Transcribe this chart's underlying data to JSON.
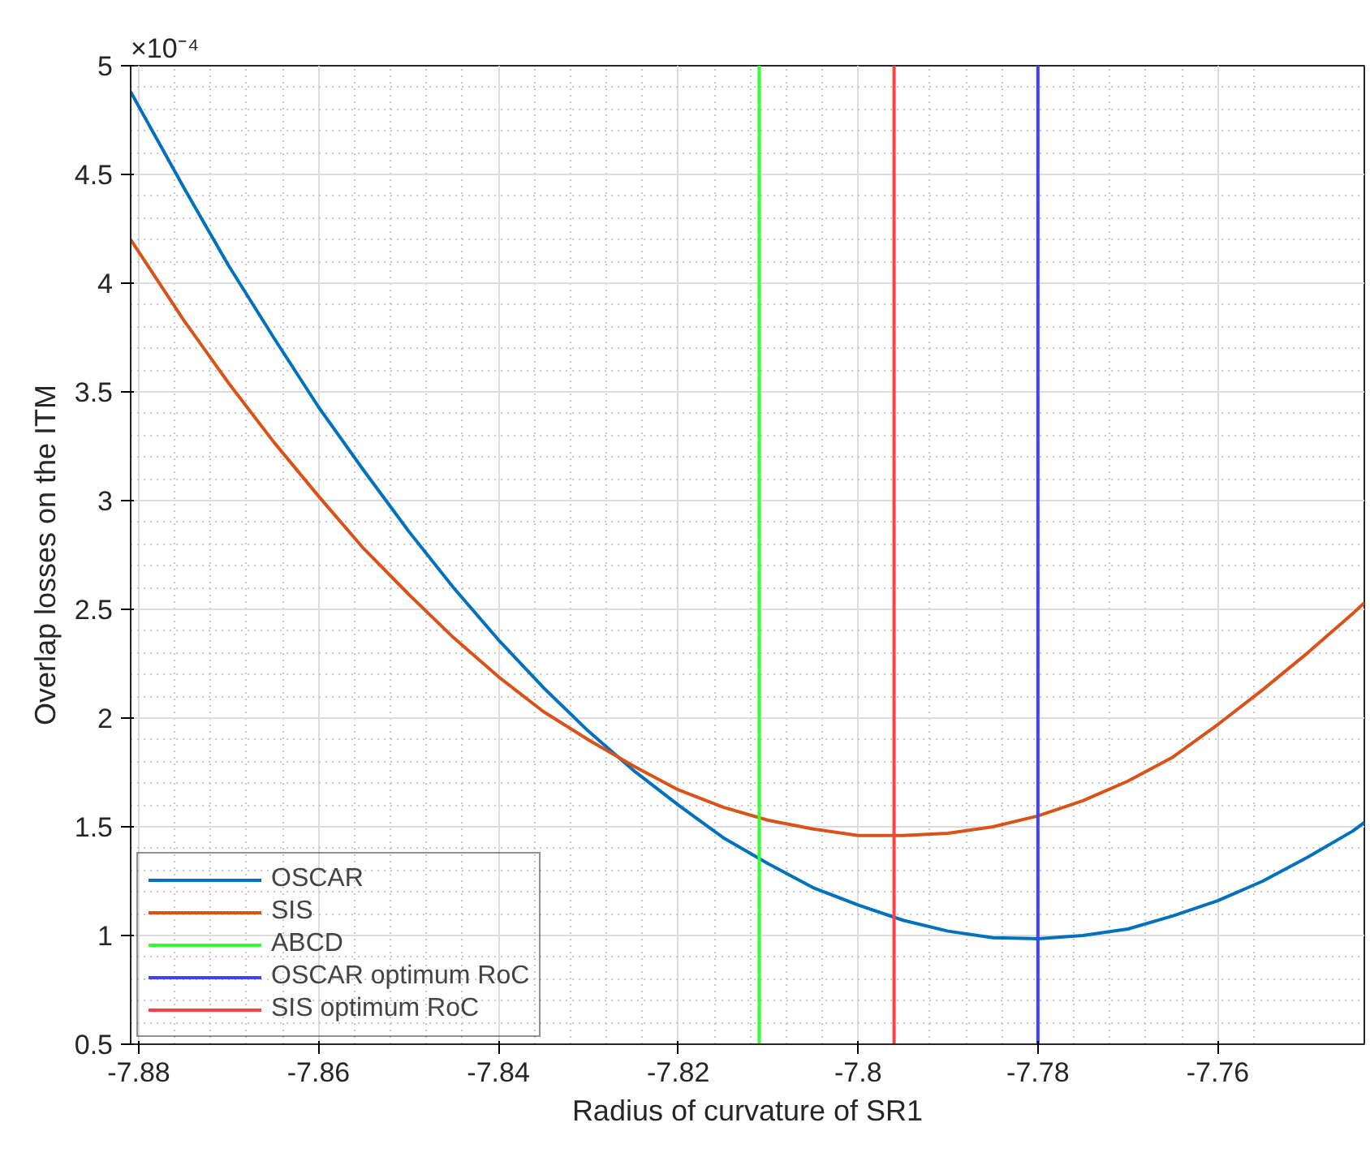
{
  "chart_data": {
    "type": "line",
    "xlabel": "Radius of curvature of SR1",
    "ylabel": "Overlap losses on the ITM",
    "annotations": [
      "×10⁻⁴"
    ],
    "x": [
      -7.8809,
      -7.875,
      -7.87,
      -7.865,
      -7.86,
      -7.855,
      -7.85,
      -7.845,
      -7.84,
      -7.835,
      -7.83,
      -7.825,
      -7.82,
      -7.815,
      -7.81,
      -7.805,
      -7.8,
      -7.795,
      -7.79,
      -7.785,
      -7.78,
      -7.775,
      -7.77,
      -7.765,
      -7.76,
      -7.755,
      -7.75,
      -7.745,
      -7.7437
    ],
    "series": [
      {
        "name": "OSCAR",
        "color": "#0072bd",
        "values": [
          4.88,
          4.44,
          4.08,
          3.75,
          3.43,
          3.14,
          2.86,
          2.6,
          2.36,
          2.14,
          1.94,
          1.76,
          1.6,
          1.45,
          1.33,
          1.22,
          1.14,
          1.07,
          1.02,
          0.99,
          0.985,
          1.0,
          1.03,
          1.09,
          1.16,
          1.25,
          1.36,
          1.48,
          1.52
        ]
      },
      {
        "name": "SIS",
        "color": "#d95319",
        "values": [
          4.2,
          3.83,
          3.54,
          3.27,
          3.02,
          2.78,
          2.57,
          2.37,
          2.19,
          2.03,
          1.9,
          1.78,
          1.67,
          1.59,
          1.53,
          1.49,
          1.46,
          1.46,
          1.47,
          1.5,
          1.55,
          1.62,
          1.71,
          1.82,
          1.97,
          2.13,
          2.3,
          2.48,
          2.53
        ]
      },
      {
        "name": "ABCD",
        "color": "#33ff33",
        "x": [
          -7.811,
          -7.811
        ],
        "values": [
          0.5,
          5
        ]
      },
      {
        "name": "OSCAR optimum RoC",
        "color": "#4040ff",
        "x": [
          -7.78,
          -7.78
        ],
        "values": [
          0.5,
          5
        ]
      },
      {
        "name": "SIS optimum RoC",
        "color": "#ff4040",
        "x": [
          -7.796,
          -7.796
        ],
        "values": [
          0.5,
          5
        ]
      }
    ],
    "xlim": [
      -7.8809,
      -7.7437
    ],
    "ylim": [
      0.5,
      5
    ],
    "xticks": [
      -7.88,
      -7.86,
      -7.84,
      -7.82,
      -7.8,
      -7.78,
      -7.76
    ],
    "yticks": [
      0.5,
      1,
      1.5,
      2,
      2.5,
      3,
      3.5,
      4,
      4.5,
      5
    ],
    "grid": true,
    "legend": "bottom left"
  }
}
